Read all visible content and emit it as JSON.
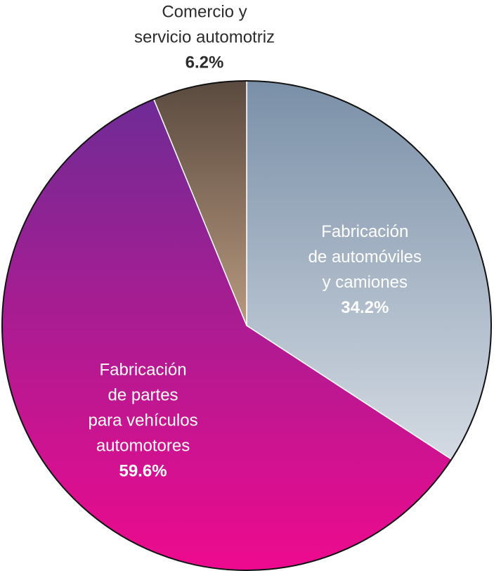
{
  "chart_data": {
    "type": "pie",
    "labels": [
      [
        "Fabricación",
        "de automóviles",
        "y camiones"
      ],
      [
        "Fabricación",
        "de partes",
        "para vehículos",
        "automotores"
      ],
      [
        "Comercio y",
        "servicio automotriz"
      ]
    ],
    "values": [
      34.2,
      59.6,
      6.2
    ],
    "value_labels": [
      "34.2%",
      "59.6%",
      "6.2%"
    ],
    "colors": [
      [
        "#7a90a8",
        "#eef0f4"
      ],
      [
        "#6a2d96",
        "#ee0a8e"
      ],
      [
        "#5a4a3f",
        "#b8997f"
      ]
    ]
  }
}
